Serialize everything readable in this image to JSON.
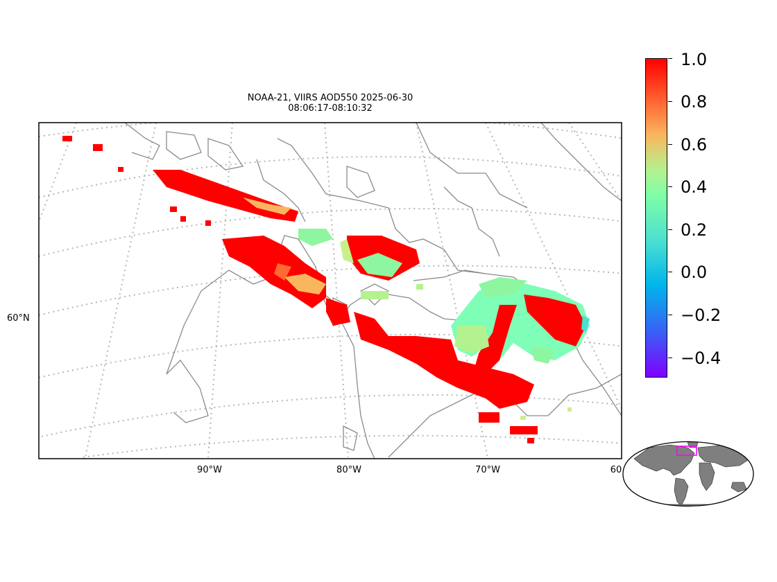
{
  "title": {
    "line1": "NOAA-21, VIIRS AOD550 2025-06-30",
    "line2": "08:06:17-08:10:32"
  },
  "axes": {
    "lon_labels": [
      "90°W",
      "80°W",
      "70°W",
      "60"
    ],
    "lat_labels": [
      "60°N"
    ],
    "gridlines": "dotted",
    "projection": "conic"
  },
  "colorbar": {
    "colormap": "rainbow",
    "ticks": [
      "1.0",
      "0.8",
      "0.6",
      "0.4",
      "0.2",
      "0.0",
      "−0.2",
      "−0.4"
    ],
    "range": [
      -0.5,
      1.0
    ]
  },
  "colors": {
    "high": "#ff0000",
    "mid": "#8ef6a0",
    "coast": "#808080",
    "grid": "#b0b0b0",
    "inset_box": "#ff00ff",
    "inset_land": "#7f7f7f"
  },
  "inset": {
    "description_icon": "world-locator-map"
  }
}
